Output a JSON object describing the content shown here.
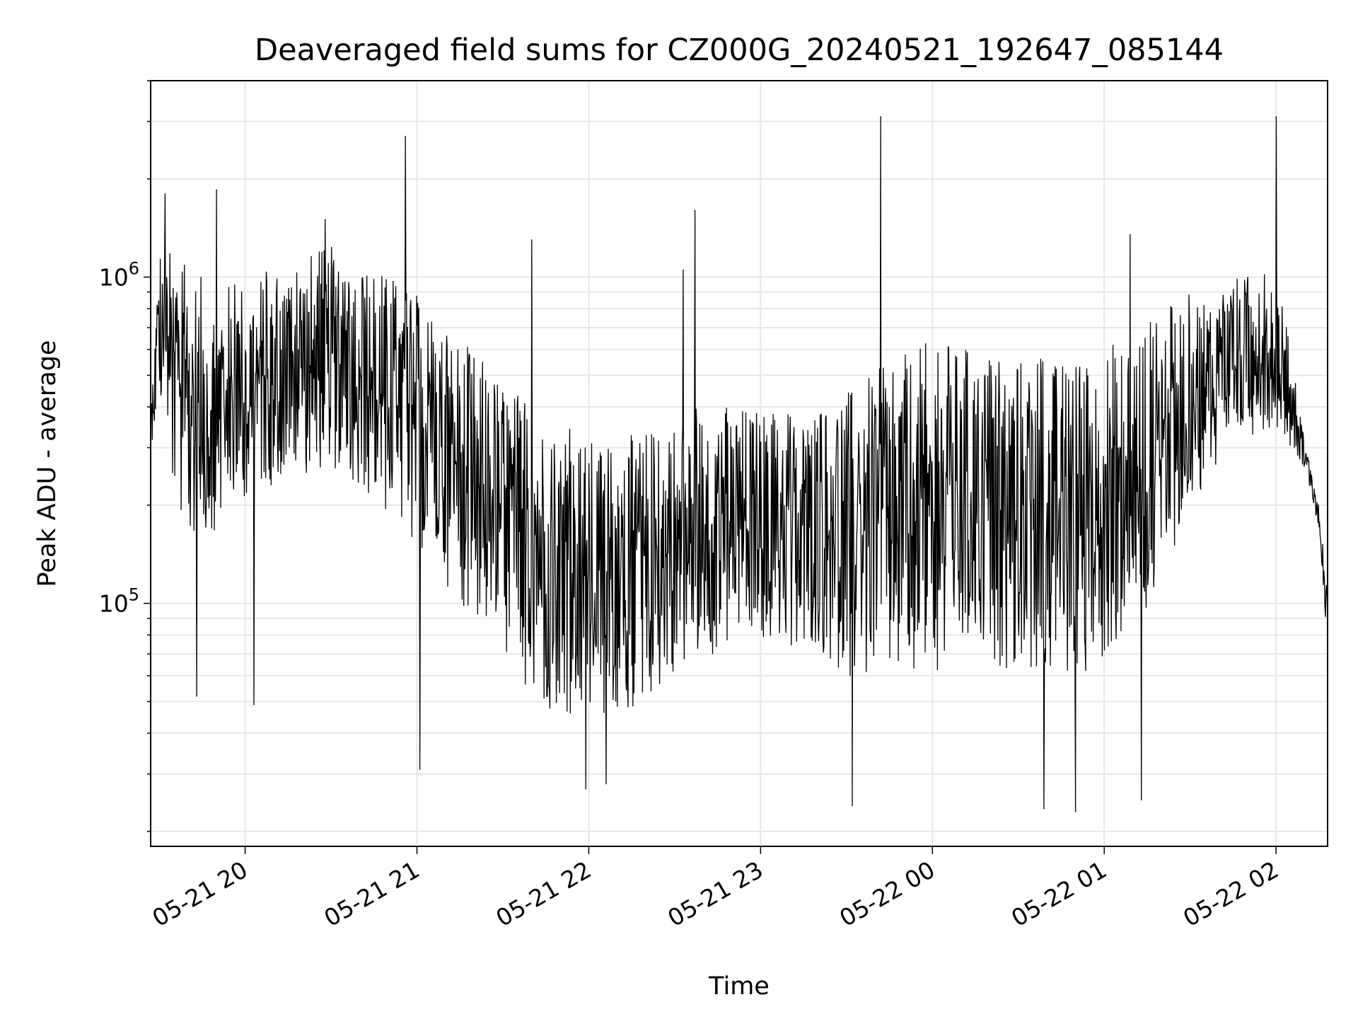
{
  "chart_data": {
    "type": "line",
    "title": "Deaveraged field sums for CZ000G_20240521_192647_085144",
    "xlabel": "Time",
    "ylabel": "Peak ADU - average",
    "yscale": "log",
    "grid": true,
    "line_color": "#000000",
    "grid_color": "#e6e6e6",
    "x_range": [
      "2024-05-21 19:27",
      "2024-05-22 02:18"
    ],
    "ylim": [
      18000,
      4000000
    ],
    "x_ticks": [
      {
        "label": "05-21 20",
        "value": "2024-05-21 20:00"
      },
      {
        "label": "05-21 21",
        "value": "2024-05-21 21:00"
      },
      {
        "label": "05-21 22",
        "value": "2024-05-21 22:00"
      },
      {
        "label": "05-21 23",
        "value": "2024-05-21 23:00"
      },
      {
        "label": "05-22 00",
        "value": "2024-05-22 00:00"
      },
      {
        "label": "05-22 01",
        "value": "2024-05-22 01:00"
      },
      {
        "label": "05-22 02",
        "value": "2024-05-22 02:00"
      }
    ],
    "y_ticks": [
      {
        "base": "10",
        "exp": "5",
        "value": 100000
      },
      {
        "base": "10",
        "exp": "6",
        "value": 1000000
      }
    ],
    "series": [
      {
        "x": [
          "2024-05-21 19:27",
          "2024-05-21 19:30",
          "2024-05-21 19:35",
          "2024-05-21 19:40",
          "2024-05-21 19:45",
          "2024-05-21 19:50",
          "2024-05-21 20:00",
          "2024-05-21 20:15",
          "2024-05-21 20:30",
          "2024-05-21 20:45",
          "2024-05-21 21:00",
          "2024-05-21 21:15",
          "2024-05-21 21:30",
          "2024-05-21 21:45",
          "2024-05-21 22:00",
          "2024-05-21 22:15",
          "2024-05-21 22:30",
          "2024-05-21 22:45",
          "2024-05-21 23:00",
          "2024-05-21 23:15",
          "2024-05-21 23:30",
          "2024-05-21 23:45",
          "2024-05-22 00:00",
          "2024-05-22 00:15",
          "2024-05-22 00:30",
          "2024-05-22 00:45",
          "2024-05-22 01:00",
          "2024-05-22 01:15",
          "2024-05-22 01:30",
          "2024-05-22 01:45",
          "2024-05-22 01:55",
          "2024-05-22 02:00",
          "2024-05-22 02:05",
          "2024-05-22 02:10",
          "2024-05-22 02:15",
          "2024-05-22 02:18"
        ],
        "upper": [
          400000,
          1300000,
          1200000,
          1100000,
          1000000,
          950000,
          1000000,
          1150000,
          1250000,
          1100000,
          900000,
          650000,
          500000,
          380000,
          320000,
          330000,
          380000,
          420000,
          400000,
          380000,
          450000,
          550000,
          650000,
          600000,
          580000,
          560000,
          620000,
          750000,
          900000,
          1000000,
          1050000,
          1100000,
          600000,
          320000,
          200000,
          110000
        ],
        "lower": [
          300000,
          400000,
          200000,
          160000,
          150000,
          170000,
          210000,
          240000,
          260000,
          200000,
          150000,
          100000,
          70000,
          45000,
          42000,
          45000,
          60000,
          70000,
          75000,
          70000,
          60000,
          55000,
          60000,
          65000,
          62000,
          55000,
          65000,
          90000,
          200000,
          300000,
          340000,
          350000,
          300000,
          260000,
          170000,
          70000
        ],
        "spikes": [
          {
            "x": "2024-05-21 19:32",
            "y": 1800000
          },
          {
            "x": "2024-05-21 19:50",
            "y": 1850000
          },
          {
            "x": "2024-05-21 20:28",
            "y": 1500000
          },
          {
            "x": "2024-05-21 20:56",
            "y": 2700000
          },
          {
            "x": "2024-05-21 21:40",
            "y": 1300000
          },
          {
            "x": "2024-05-21 22:33",
            "y": 1050000
          },
          {
            "x": "2024-05-21 22:37",
            "y": 1600000
          },
          {
            "x": "2024-05-21 23:42",
            "y": 3100000
          },
          {
            "x": "2024-05-22 01:09",
            "y": 1350000
          },
          {
            "x": "2024-05-22 02:00",
            "y": 3100000
          }
        ],
        "dips": [
          {
            "x": "2024-05-21 19:43",
            "y": 52000
          },
          {
            "x": "2024-05-21 20:03",
            "y": 49000
          },
          {
            "x": "2024-05-21 21:01",
            "y": 31000
          },
          {
            "x": "2024-05-21 21:59",
            "y": 27000
          },
          {
            "x": "2024-05-21 22:06",
            "y": 28000
          },
          {
            "x": "2024-05-21 23:32",
            "y": 24000
          },
          {
            "x": "2024-05-22 00:39",
            "y": 23500
          },
          {
            "x": "2024-05-22 00:50",
            "y": 23000
          },
          {
            "x": "2024-05-22 01:13",
            "y": 25000
          }
        ]
      }
    ]
  }
}
